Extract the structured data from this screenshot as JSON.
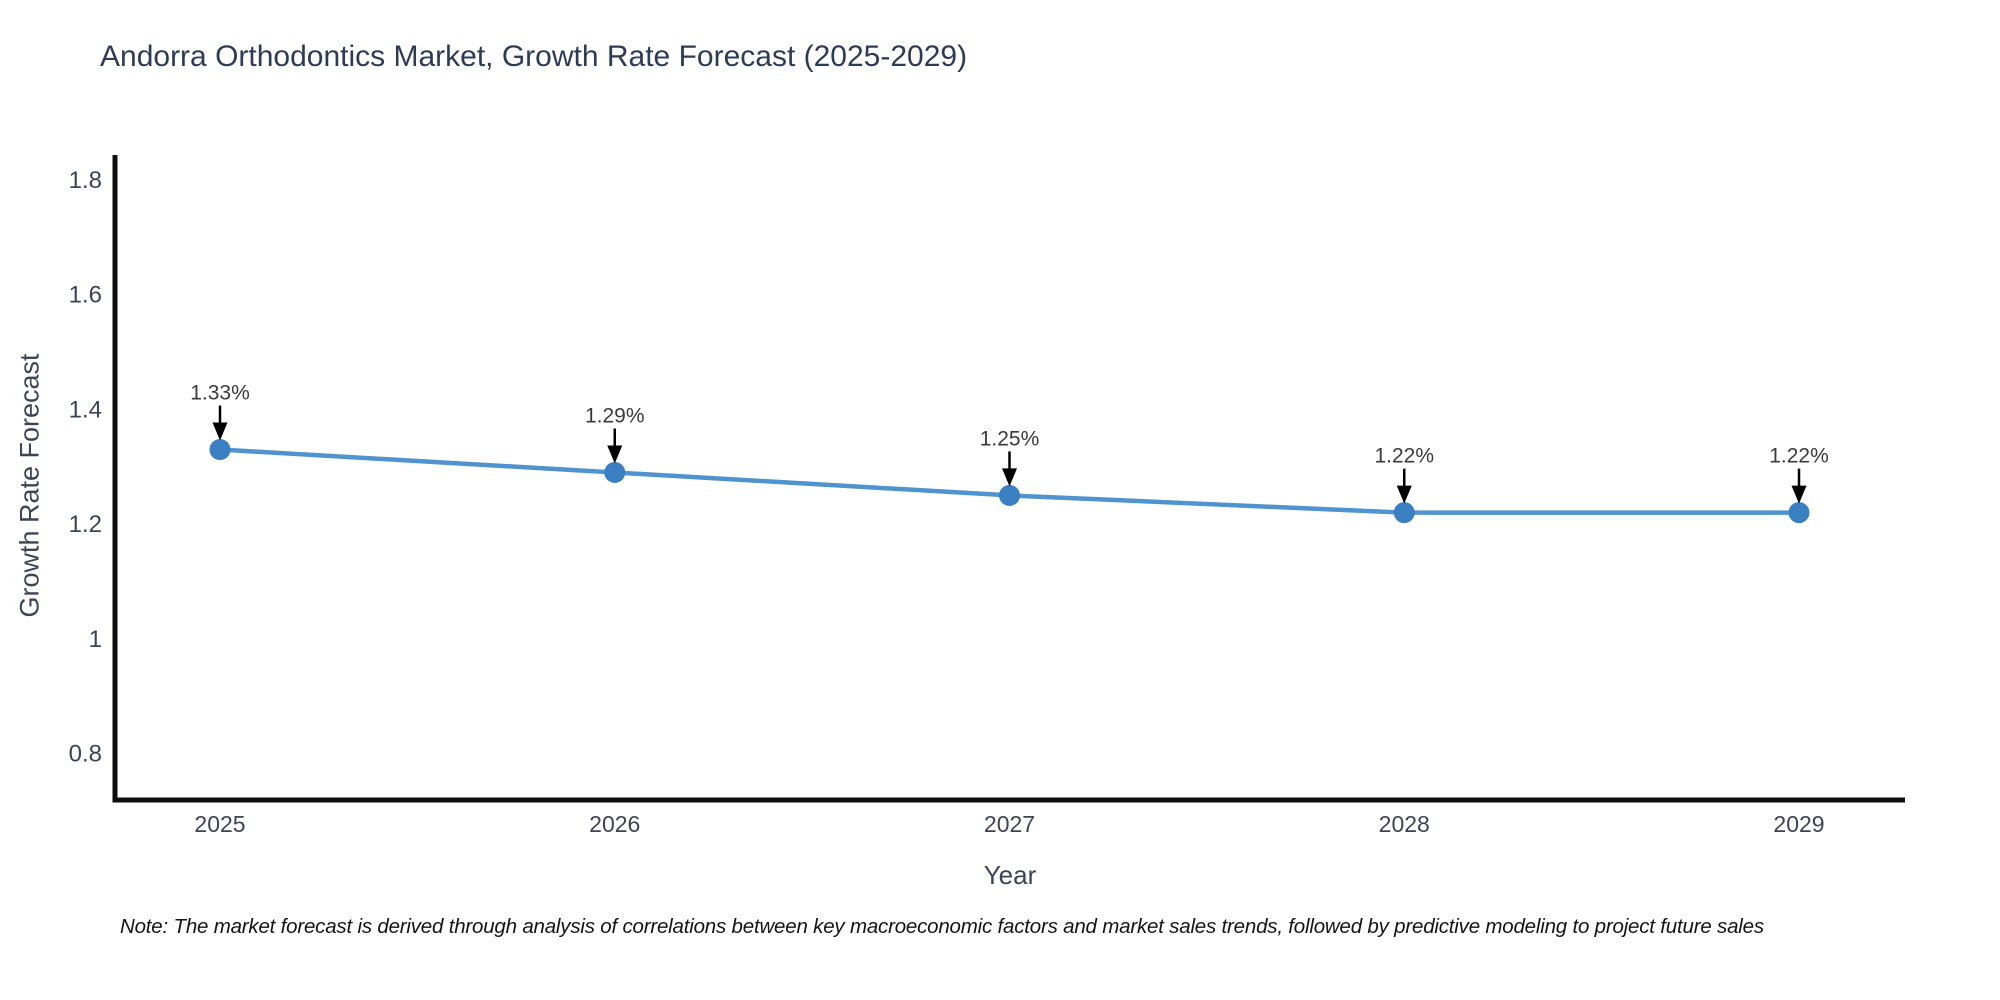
{
  "chart_data": {
    "type": "line",
    "title": "Andorra Orthodontics Market, Growth Rate Forecast (2025-2029)",
    "xlabel": "Year",
    "ylabel": "Growth Rate Forecast",
    "categories": [
      "2025",
      "2026",
      "2027",
      "2028",
      "2029"
    ],
    "series": [
      {
        "name": "Growth Rate Forecast",
        "values": [
          1.33,
          1.29,
          1.25,
          1.22,
          1.22
        ],
        "point_labels": [
          "1.33%",
          "1.29%",
          "1.25%",
          "1.22%",
          "1.22%"
        ]
      }
    ],
    "yticks": [
      {
        "value": 1.8,
        "label": "1.8"
      },
      {
        "value": 1.6,
        "label": "1.6"
      },
      {
        "value": 1.4,
        "label": "1.4"
      },
      {
        "value": 1.2,
        "label": "1.2"
      },
      {
        "value": 1.0,
        "label": "1"
      },
      {
        "value": 0.8,
        "label": "0.8"
      }
    ],
    "ylim": [
      0.72,
      1.84
    ],
    "grid": false,
    "legend_position": "none",
    "colors": {
      "line": "#4f94ce",
      "marker": "#3a7fc1",
      "annotation_arrow": "#000000",
      "annotation_text": "#3a3a3a",
      "axis_line": "#0d0d0d",
      "title_text": "#2e3b55",
      "tick_text": "#3d4456"
    }
  },
  "footnote": "Note: The market forecast is derived through analysis of correlations between key macroeconomic factors and market sales trends, followed by predictive modeling to project future sales"
}
